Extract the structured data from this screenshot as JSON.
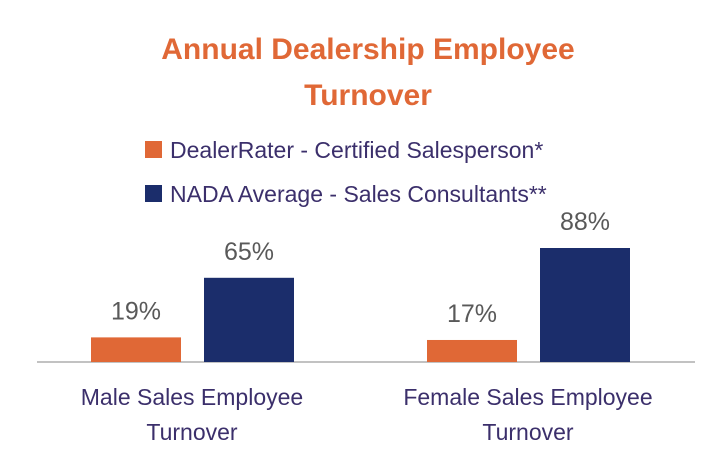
{
  "chart_data": {
    "type": "bar",
    "title_lines": [
      "Annual Dealership Employee",
      "Turnover"
    ],
    "categories": [
      [
        "Male Sales Employee",
        "Turnover"
      ],
      [
        "Female Sales Employee",
        "Turnover"
      ]
    ],
    "series": [
      {
        "name": "DealerRater - Certified Salesperson*",
        "values": [
          19,
          17
        ],
        "labels": [
          "19%",
          "17%"
        ],
        "color": "#e06836"
      },
      {
        "name": "NADA Average - Sales Consultants**",
        "values": [
          65,
          88
        ],
        "labels": [
          "65%",
          "88%"
        ],
        "color": "#1b2d6b"
      }
    ],
    "ylim": [
      0,
      100
    ],
    "grid": false,
    "legend_position": "top-center",
    "colors": {
      "title": "#e06836",
      "text": "#3b2f6b",
      "value_labels": "#595959",
      "axis": "#9e9e9e"
    }
  }
}
